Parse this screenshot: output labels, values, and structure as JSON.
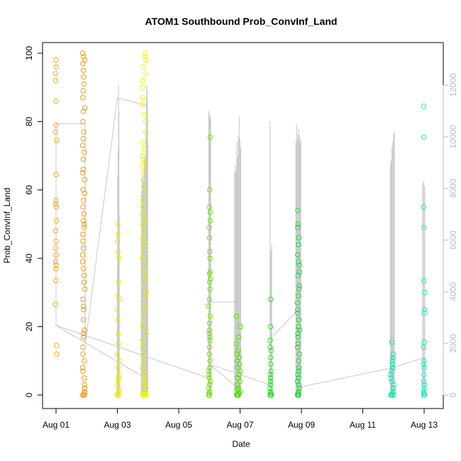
{
  "chart_data": {
    "type": "scatter",
    "title": "ATOM1 Southbound Prob_ConvInf_Land",
    "xlabel": "Date",
    "ylabel": "Prob_ConvInf_Land",
    "x_unit": "days since Aug 01",
    "xlim": [
      0,
      12
    ],
    "ylim": [
      0,
      100
    ],
    "y2lim": [
      0,
      12000
    ],
    "x_ticks": [
      0,
      2,
      4,
      6,
      8,
      10,
      12
    ],
    "x_tick_labels": [
      "Aug 01",
      "Aug 03",
      "Aug 05",
      "Aug 07",
      "Aug 09",
      "Aug 11",
      "Aug 13"
    ],
    "y_ticks": [
      0,
      20,
      40,
      60,
      80,
      100
    ],
    "y2_ticks": [
      0,
      2000,
      4000,
      6000,
      8000,
      10000,
      12000
    ],
    "colors": {
      "line": "#c8c8c8",
      "right_axis": "#bdbdbd",
      "left_axis": "#000000"
    },
    "point_groups": [
      {
        "x": 0.0,
        "jitter": 0.02,
        "color": "#f5a623",
        "values": [
          98,
          96,
          94,
          92,
          86,
          79,
          77,
          74.5,
          64.5,
          57,
          56,
          55,
          51,
          48,
          45,
          43,
          41,
          39,
          38,
          37,
          33.5,
          26.5,
          14.5,
          12
        ]
      },
      {
        "x": 0.9,
        "jitter": 0.04,
        "color": "#f29a1a",
        "values": [
          100,
          99,
          98,
          97,
          95,
          93,
          91,
          89,
          87,
          84,
          83,
          80,
          77,
          75,
          73,
          71,
          69,
          66,
          65,
          63,
          60,
          59,
          57,
          55,
          53,
          51,
          50,
          49,
          47,
          45,
          43,
          41,
          39,
          37,
          35,
          33,
          31,
          28,
          26,
          25,
          22,
          19,
          18,
          17,
          14,
          12,
          10,
          8,
          7,
          5,
          3,
          2,
          1,
          0.5,
          0,
          0,
          0,
          0
        ]
      },
      {
        "x": 2.03,
        "jitter": 0.04,
        "color": "#e8ea00",
        "values": [
          50,
          47,
          45,
          42,
          40,
          33,
          29,
          28,
          25,
          22,
          18,
          15,
          12,
          10,
          8,
          6,
          5,
          4,
          3,
          2,
          1,
          0.5,
          0,
          0,
          0
        ]
      },
      {
        "x": 2.88,
        "jitter": 0.07,
        "color": "#eef200",
        "values": [
          100,
          99,
          98,
          96,
          94,
          92,
          90,
          87,
          85,
          82,
          80,
          77,
          74,
          72,
          70,
          69,
          68,
          67,
          65,
          63,
          61,
          59,
          57,
          55,
          53,
          51,
          50,
          48,
          46,
          44,
          42,
          40,
          38,
          36,
          34,
          32,
          30,
          28,
          26,
          24,
          22,
          20,
          18,
          16,
          14,
          12,
          10,
          8,
          6,
          5,
          4,
          3,
          2,
          1,
          0.5,
          0,
          0,
          0,
          0
        ]
      },
      {
        "x": 5.0,
        "jitter": 0.03,
        "color": "#6ee600",
        "values": [
          75.5,
          60,
          55,
          53.5,
          51,
          49,
          46,
          42,
          40,
          36,
          35.5,
          34,
          33,
          31,
          28,
          26,
          23,
          21,
          19,
          18,
          17,
          16,
          14,
          12,
          10,
          8,
          7,
          6,
          5,
          4,
          3,
          2,
          1,
          0.5,
          0,
          0,
          0
        ]
      },
      {
        "x": 5.95,
        "jitter": 0.07,
        "color": "#4ee000",
        "values": [
          23,
          20,
          17,
          15,
          13,
          12,
          11,
          10,
          9,
          8,
          7,
          6,
          5,
          4,
          3,
          2,
          1.5,
          1,
          0.5,
          0,
          0,
          0,
          0,
          0
        ]
      },
      {
        "x": 7.0,
        "jitter": 0.02,
        "color": "#2edc2e",
        "values": [
          28,
          20,
          16,
          14,
          13,
          11,
          9,
          7,
          6,
          5,
          4,
          3,
          2,
          1,
          0.5,
          0,
          0,
          0
        ]
      },
      {
        "x": 7.9,
        "jitter": 0.04,
        "color": "#1edc3a",
        "values": [
          54,
          50,
          49,
          46,
          44,
          41,
          39,
          38,
          36,
          35,
          32,
          31,
          29,
          27,
          25,
          24,
          22,
          20,
          19,
          18,
          17,
          15,
          14,
          12,
          10,
          8,
          7,
          6,
          5,
          4,
          3,
          2,
          1,
          0.5,
          0,
          0,
          0,
          0
        ]
      },
      {
        "x": 10.96,
        "jitter": 0.06,
        "color": "#10e8b0",
        "values": [
          15.5,
          12,
          11,
          10,
          9,
          8,
          7,
          6,
          5,
          4,
          3,
          2,
          1,
          0.5,
          0,
          0,
          0,
          0,
          0
        ]
      },
      {
        "x": 12.0,
        "jitter": 0.02,
        "color": "#18f0c0",
        "values": [
          84.5,
          75.5,
          55,
          49,
          33.5,
          30,
          25,
          24,
          15.5,
          14,
          10,
          9,
          8,
          6,
          4,
          3,
          2,
          1,
          0.5,
          0,
          0,
          0
        ]
      }
    ],
    "spike_groups": [
      {
        "x_start": 2.0,
        "x_end": 2.06,
        "peaks": [
          5000,
          8500,
          9500,
          12000,
          11000,
          7000
        ]
      },
      {
        "x_start": 2.78,
        "x_end": 2.99,
        "peaks": [
          6000,
          7800,
          8200,
          8400,
          8500,
          8100,
          7600,
          8300,
          8800,
          9000,
          9300,
          9100,
          8900,
          8500,
          10200,
          11500,
          12000,
          11800,
          10500,
          9800
        ]
      },
      {
        "x_start": 4.98,
        "x_end": 5.04,
        "peaks": [
          11000,
          10800,
          10900,
          10700
        ]
      },
      {
        "x_start": 5.82,
        "x_end": 6.02,
        "peaks": [
          8600,
          8900,
          8700,
          9800,
          9200,
          10000,
          10800,
          9900,
          9600
        ]
      },
      {
        "x_start": 6.98,
        "x_end": 7.03,
        "peaks": [
          10600,
          5600,
          5800
        ]
      },
      {
        "x_start": 7.82,
        "x_end": 7.98,
        "peaks": [
          9800,
          10500,
          9900,
          10100,
          10300,
          10000,
          9800,
          9900
        ]
      },
      {
        "x_start": 10.9,
        "x_end": 11.03,
        "peaks": [
          8900,
          9100,
          9600,
          9800,
          10100,
          10200
        ]
      },
      {
        "x_start": 11.95,
        "x_end": 12.02,
        "peaks": [
          8200,
          8300,
          8100
        ]
      }
    ],
    "trace_line": [
      [
        0.0,
        2700
      ],
      [
        0.0,
        10500
      ],
      [
        0.95,
        10500
      ],
      [
        0.95,
        1950
      ],
      [
        2.0,
        11500
      ],
      [
        2.98,
        11200
      ],
      [
        2.98,
        600
      ],
      [
        0.0,
        2700
      ],
      [
        4.98,
        650
      ],
      [
        4.98,
        3600
      ],
      [
        5.95,
        3600
      ],
      [
        5.95,
        250
      ],
      [
        5.0,
        1200
      ],
      [
        7.0,
        380
      ],
      [
        7.0,
        2200
      ],
      [
        7.9,
        3300
      ],
      [
        7.9,
        300
      ],
      [
        10.95,
        1050
      ],
      [
        12.0,
        1450
      ],
      [
        12.0,
        100
      ]
    ]
  }
}
